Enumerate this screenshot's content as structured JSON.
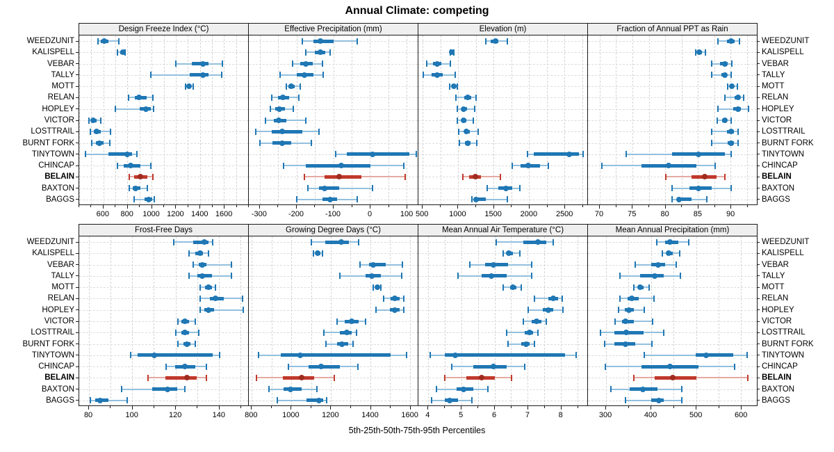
{
  "title": "Annual Climate: competing",
  "xlabel": "5th-25th-50th-75th-95th Percentiles",
  "highlight_station": "BELAIN",
  "colors": {
    "bar": "#1f77b4",
    "bar_light": "#93c0de",
    "highlight": "#c0392b",
    "highlight_light": "#e4aaa2",
    "highlight_dot": "#a02c20",
    "header_bg": "#efefef",
    "grid": "#d4d4d4",
    "border": "#1a1a1a",
    "text": "#000000"
  },
  "chart_data": {
    "type": "dot-percentile-trellis",
    "percentile_labels": [
      "5th",
      "25th",
      "50th",
      "75th",
      "95th"
    ],
    "legend_position": "none",
    "grid": "dashed",
    "stations": [
      "WEEDZUNIT",
      "KALISPELL",
      "VEBAR",
      "TALLY",
      "MOTT",
      "RELAN",
      "HOPLEY",
      "VICTOR",
      "LOSTTRAIL",
      "BURNT FORK",
      "TINYTOWN",
      "CHINCAP",
      "BELAIN",
      "BAXTON",
      "BAGGS"
    ],
    "panels": [
      {
        "title": "Design Freeze Index (°C)",
        "row": 0,
        "col": 0,
        "xmin": 400,
        "xmax": 1800,
        "ticks": [
          600,
          800,
          1000,
          1200,
          1400,
          1600
        ],
        "values": [
          [
            555,
            580,
            605,
            640,
            725
          ],
          [
            715,
            740,
            760,
            768,
            778
          ],
          [
            1195,
            1330,
            1420,
            1465,
            1580
          ],
          [
            990,
            1310,
            1420,
            1465,
            1575
          ],
          [
            1275,
            1295,
            1305,
            1320,
            1340
          ],
          [
            810,
            860,
            895,
            955,
            1010
          ],
          [
            700,
            900,
            950,
            990,
            1015
          ],
          [
            480,
            500,
            515,
            545,
            580
          ],
          [
            490,
            520,
            545,
            580,
            660
          ],
          [
            505,
            540,
            565,
            600,
            650
          ],
          [
            450,
            640,
            795,
            835,
            875
          ],
          [
            715,
            770,
            825,
            905,
            990
          ],
          [
            815,
            855,
            905,
            960,
            1010
          ],
          [
            815,
            840,
            865,
            905,
            960
          ],
          [
            855,
            940,
            975,
            1000,
            1020
          ]
        ]
      },
      {
        "title": "Effective Precipitation (mm)",
        "row": 0,
        "col": 1,
        "xmin": -330,
        "xmax": 130,
        "ticks": [
          -300,
          -200,
          -100,
          0,
          100
        ],
        "values": [
          [
            -185,
            -155,
            -135,
            -100,
            -35
          ],
          [
            -175,
            -150,
            -135,
            -122,
            -110
          ],
          [
            -212,
            -190,
            -175,
            -157,
            -130
          ],
          [
            -245,
            -200,
            -180,
            -155,
            -128
          ],
          [
            -228,
            -222,
            -215,
            -206,
            -190
          ],
          [
            -268,
            -250,
            -238,
            -220,
            -195
          ],
          [
            -272,
            -258,
            -247,
            -232,
            -210
          ],
          [
            -285,
            -262,
            -248,
            -228,
            -175
          ],
          [
            -312,
            -268,
            -240,
            -185,
            -140
          ],
          [
            -300,
            -265,
            -240,
            -215,
            -160
          ],
          [
            -95,
            -65,
            5,
            105,
            125
          ],
          [
            -235,
            -175,
            -80,
            0,
            90
          ],
          [
            -180,
            -125,
            -85,
            -25,
            95
          ],
          [
            -170,
            -140,
            -125,
            -85,
            5
          ],
          [
            -200,
            -130,
            -110,
            -90,
            -35
          ]
        ]
      },
      {
        "title": "Elevation (m)",
        "row": 0,
        "col": 2,
        "xmin": 440,
        "xmax": 2820,
        "ticks": [
          500,
          1000,
          1500,
          2000,
          2500
        ],
        "values": [
          [
            1390,
            1455,
            1520,
            1565,
            1690
          ],
          [
            885,
            895,
            905,
            920,
            935
          ],
          [
            560,
            645,
            700,
            760,
            890
          ],
          [
            510,
            630,
            700,
            780,
            960
          ],
          [
            880,
            915,
            935,
            955,
            985
          ],
          [
            965,
            1080,
            1130,
            1180,
            1250
          ],
          [
            990,
            1040,
            1070,
            1120,
            1230
          ],
          [
            990,
            1040,
            1075,
            1110,
            1210
          ],
          [
            1010,
            1080,
            1115,
            1160,
            1280
          ],
          [
            1020,
            1090,
            1130,
            1170,
            1260
          ],
          [
            1975,
            2060,
            2555,
            2690,
            2755
          ],
          [
            1760,
            1870,
            1985,
            2150,
            2260
          ],
          [
            1060,
            1150,
            1235,
            1320,
            1590
          ],
          [
            1410,
            1560,
            1665,
            1760,
            1860
          ],
          [
            1190,
            1220,
            1245,
            1390,
            1690
          ]
        ]
      },
      {
        "title": "Fraction of Annual PPT as Rain",
        "row": 0,
        "col": 3,
        "xmin": 68.2,
        "xmax": 94,
        "ticks": [
          70,
          75,
          80,
          85,
          90
        ],
        "values": [
          [
            88,
            89.3,
            90,
            90.5,
            91.2
          ],
          [
            84.6,
            84.9,
            85.1,
            85.5,
            86.1
          ],
          [
            87,
            88.3,
            89,
            89.5,
            90.1
          ],
          [
            87,
            88.5,
            89,
            89.4,
            90
          ],
          [
            89.5,
            89.9,
            90.1,
            90.4,
            90.9
          ],
          [
            89,
            90.5,
            91,
            91.3,
            91.9
          ],
          [
            88,
            90.3,
            91,
            91.5,
            92.6
          ],
          [
            87.9,
            88.6,
            89,
            89.4,
            90
          ],
          [
            87,
            89.4,
            90,
            90.4,
            91
          ],
          [
            87,
            89.5,
            90,
            90.4,
            91
          ],
          [
            74,
            81,
            85,
            89,
            90
          ],
          [
            70.3,
            76.3,
            80.5,
            84.7,
            87.5
          ],
          [
            80,
            84,
            86,
            87.8,
            89
          ],
          [
            81,
            83.6,
            85,
            87,
            90
          ],
          [
            81,
            81.7,
            82.1,
            84,
            86.3
          ]
        ]
      },
      {
        "title": "Frost-Free Days",
        "row": 1,
        "col": 0,
        "xmin": 75.5,
        "xmax": 153.5,
        "ticks": [
          80,
          100,
          120,
          140
        ],
        "values": [
          [
            119,
            128,
            133,
            135,
            137
          ],
          [
            126,
            129,
            131,
            132.5,
            135
          ],
          [
            128,
            130.5,
            132,
            134,
            145.5
          ],
          [
            126,
            130,
            132,
            136.5,
            145.5
          ],
          [
            131,
            133.5,
            135,
            136.5,
            138
          ],
          [
            131,
            135.5,
            138,
            142,
            150.5
          ],
          [
            131,
            133,
            135,
            137.5,
            151
          ],
          [
            121,
            122.5,
            124,
            126,
            129
          ],
          [
            120,
            122.5,
            124,
            126,
            130.5
          ],
          [
            121,
            123.5,
            125,
            126.5,
            129
          ],
          [
            99,
            102.5,
            110,
            137,
            140
          ],
          [
            115.5,
            119.5,
            124,
            129,
            134
          ],
          [
            107,
            115,
            125,
            129.5,
            134
          ],
          [
            95,
            109,
            116,
            120.5,
            124
          ],
          [
            80.5,
            83,
            85,
            89,
            97.5
          ]
        ]
      },
      {
        "title": "Growing Degree Days (°C)",
        "row": 1,
        "col": 1,
        "xmin": 785,
        "xmax": 1640,
        "ticks": [
          800,
          1000,
          1200,
          1400,
          1600
        ],
        "values": [
          [
            1100,
            1170,
            1250,
            1290,
            1340
          ],
          [
            1112,
            1124,
            1132,
            1145,
            1158
          ],
          [
            1345,
            1390,
            1412,
            1475,
            1560
          ],
          [
            1245,
            1375,
            1405,
            1450,
            1555
          ],
          [
            1413,
            1424,
            1432,
            1441,
            1452
          ],
          [
            1465,
            1500,
            1520,
            1545,
            1567
          ],
          [
            1425,
            1495,
            1520,
            1545,
            1567
          ],
          [
            1230,
            1270,
            1305,
            1340,
            1375
          ],
          [
            1165,
            1245,
            1280,
            1305,
            1327
          ],
          [
            1175,
            1230,
            1255,
            1285,
            1310
          ],
          [
            835,
            945,
            1045,
            1500,
            1580
          ],
          [
            985,
            1085,
            1150,
            1245,
            1335
          ],
          [
            825,
            955,
            1050,
            1115,
            1215
          ],
          [
            885,
            960,
            995,
            1050,
            1130
          ],
          [
            930,
            1075,
            1140,
            1160,
            1178
          ]
        ]
      },
      {
        "title": "Mean Annual Air Temperature (°C)",
        "row": 1,
        "col": 2,
        "xmin": 3.7,
        "xmax": 8.8,
        "ticks": [
          4,
          5,
          6,
          7,
          8
        ],
        "values": [
          [
            6.05,
            6.85,
            7.3,
            7.55,
            7.75
          ],
          [
            6.25,
            6.35,
            6.42,
            6.55,
            6.75
          ],
          [
            5.25,
            5.7,
            5.95,
            6.4,
            7.1
          ],
          [
            4.9,
            5.6,
            5.9,
            6.35,
            7.1
          ],
          [
            6.25,
            6.45,
            6.55,
            6.65,
            6.8
          ],
          [
            7.2,
            7.6,
            7.75,
            7.9,
            8.02
          ],
          [
            7.0,
            7.45,
            7.6,
            7.75,
            8.05
          ],
          [
            6.85,
            7.1,
            7.25,
            7.4,
            7.55
          ],
          [
            6.35,
            6.9,
            7.05,
            7.15,
            7.3
          ],
          [
            6.4,
            6.8,
            6.95,
            7.05,
            7.2
          ],
          [
            4.05,
            4.5,
            4.8,
            8.1,
            8.45
          ],
          [
            4.7,
            5.35,
            5.95,
            6.35,
            6.9
          ],
          [
            4.5,
            5.15,
            5.6,
            6.0,
            6.5
          ],
          [
            4.25,
            4.85,
            5.05,
            5.35,
            5.8
          ],
          [
            4.1,
            4.5,
            4.65,
            4.9,
            5.3
          ]
        ]
      },
      {
        "title": "Mean Annual Precipitation (mm)",
        "row": 1,
        "col": 3,
        "xmin": 260,
        "xmax": 635,
        "ticks": [
          300,
          400,
          500,
          600
        ],
        "values": [
          [
            412,
            430,
            442,
            460,
            483
          ],
          [
            425,
            433,
            439,
            448,
            463
          ],
          [
            365,
            400,
            415,
            430,
            455
          ],
          [
            330,
            375,
            407,
            428,
            465
          ],
          [
            362,
            370,
            376,
            383,
            395
          ],
          [
            330,
            348,
            357,
            372,
            406
          ],
          [
            328,
            342,
            351,
            362,
            385
          ],
          [
            320,
            335,
            343,
            362,
            403
          ],
          [
            288,
            318,
            344,
            383,
            428
          ],
          [
            297,
            318,
            343,
            365,
            402
          ],
          [
            385,
            498,
            522,
            582,
            612
          ],
          [
            298,
            378,
            442,
            505,
            585
          ],
          [
            362,
            408,
            448,
            500,
            613
          ],
          [
            310,
            352,
            382,
            413,
            468
          ],
          [
            343,
            400,
            417,
            428,
            468
          ]
        ]
      }
    ]
  }
}
